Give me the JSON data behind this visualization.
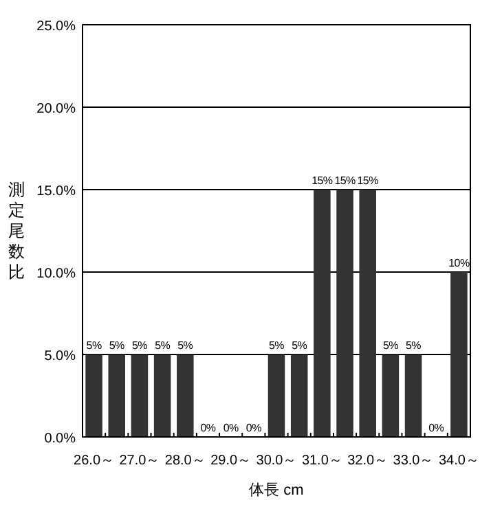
{
  "chart_data": {
    "type": "bar",
    "xlabel": "体長 cm",
    "ylabel": "測定尾数比",
    "categories": [
      "26.0～",
      null,
      "27.0～",
      null,
      "28.0～",
      null,
      "29.0～",
      null,
      "30.0～",
      null,
      "31.0～",
      null,
      "32.0～",
      null,
      "33.0～",
      null,
      "34.0～"
    ],
    "values": [
      5,
      5,
      5,
      5,
      5,
      0,
      0,
      0,
      5,
      5,
      15,
      15,
      15,
      5,
      5,
      0,
      10
    ],
    "value_labels": [
      "5%",
      "5%",
      "5%",
      "5%",
      "5%",
      "0%",
      "0%",
      "0%",
      "5%",
      "5%",
      "15%",
      "15%",
      "15%",
      "5%",
      "5%",
      "0%",
      "10%"
    ],
    "color": "#333333",
    "ylim": [
      0,
      25
    ],
    "yticks": [
      {
        "value": 0,
        "label": "0.0%"
      },
      {
        "value": 5,
        "label": "5.0%"
      },
      {
        "value": 10,
        "label": "10.0%"
      },
      {
        "value": 15,
        "label": "15.0%"
      },
      {
        "value": 20,
        "label": "20.0%"
      },
      {
        "value": 25,
        "label": "25.0%"
      }
    ],
    "grid": "y"
  }
}
